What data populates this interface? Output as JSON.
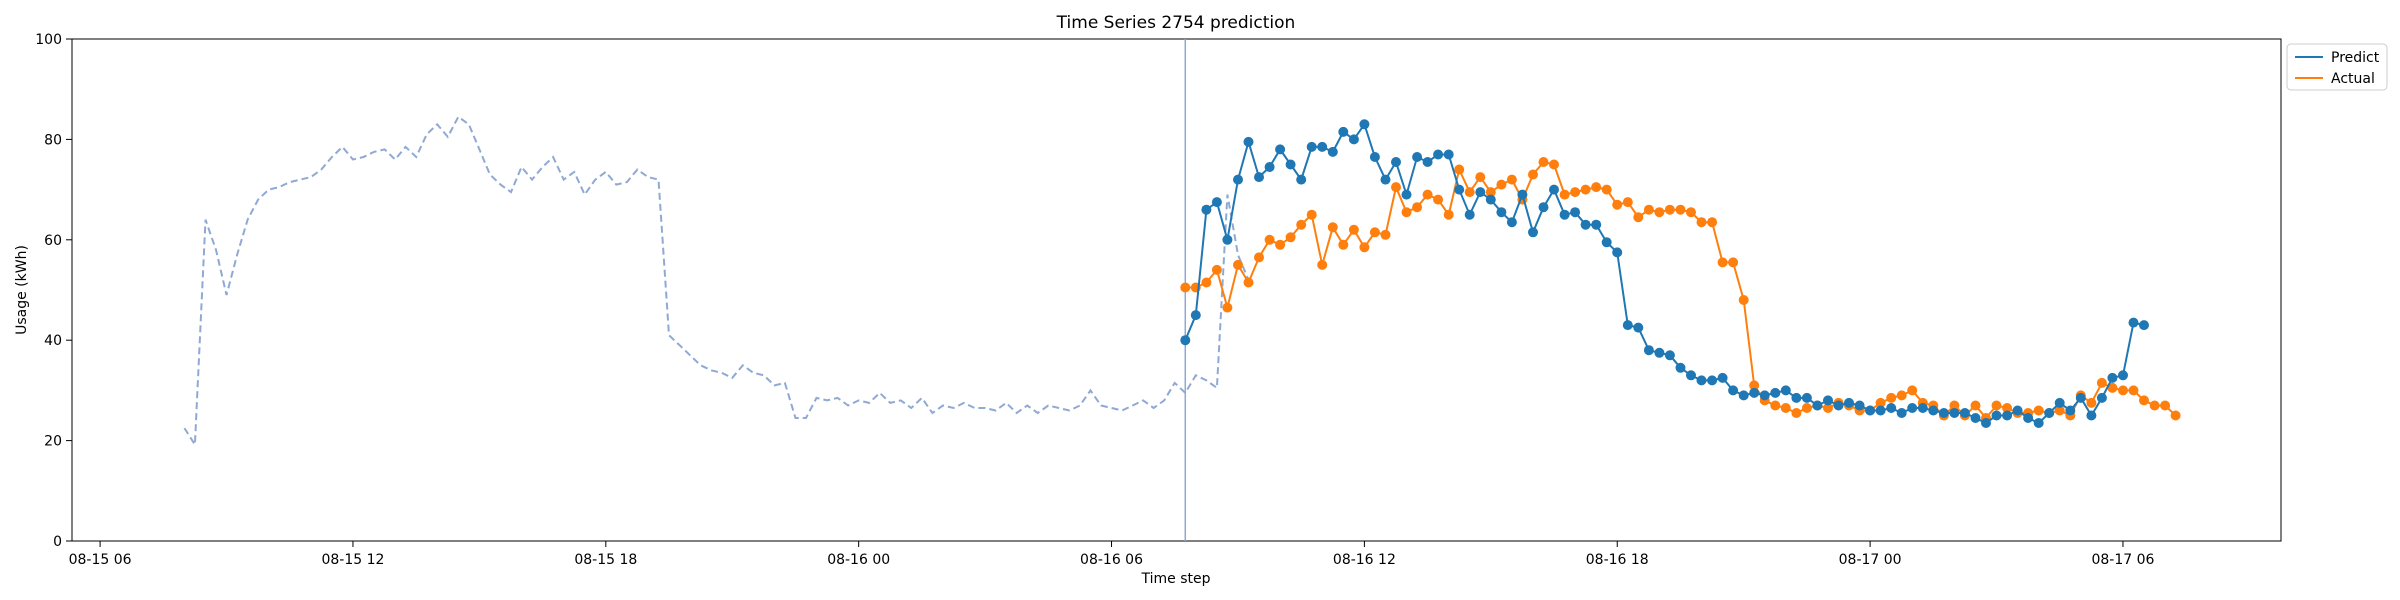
{
  "chart_data": {
    "type": "line",
    "title": "Time Series 2754 prediction",
    "xlabel": "Time step",
    "ylabel": "Usage (kWh)",
    "ylim": [
      0,
      100
    ],
    "xlim": [
      "2024-08-15T05:20",
      "2024-08-17T09:45"
    ],
    "x_ticks": [
      {
        "t": "2024-08-15T06:00",
        "label": "08-15 06"
      },
      {
        "t": "2024-08-15T12:00",
        "label": "08-15 12"
      },
      {
        "t": "2024-08-15T18:00",
        "label": "08-15 18"
      },
      {
        "t": "2024-08-16T00:00",
        "label": "08-16 00"
      },
      {
        "t": "2024-08-16T06:00",
        "label": "08-16 06"
      },
      {
        "t": "2024-08-16T12:00",
        "label": "08-16 12"
      },
      {
        "t": "2024-08-16T18:00",
        "label": "08-16 18"
      },
      {
        "t": "2024-08-17T00:00",
        "label": "08-17 00"
      },
      {
        "t": "2024-08-17T06:00",
        "label": "08-17 06"
      }
    ],
    "y_ticks": [
      0,
      20,
      40,
      60,
      80,
      100
    ],
    "grid": false,
    "legend_position": "upper-right-outside",
    "vline_x": "2024-08-16T07:45",
    "colors": {
      "history": "#8fa9d4",
      "predict": "#1f77b4",
      "actual": "#ff7f0e",
      "vline": "#8fa9d4"
    },
    "history": {
      "start": "2024-08-15T08:00",
      "step_minutes": 15,
      "values": [
        22.5,
        19.2,
        64.0,
        58.0,
        49.0,
        57.0,
        64.0,
        68.0,
        70.0,
        70.5,
        71.5,
        72.0,
        72.5,
        74.0,
        76.5,
        78.5,
        76.0,
        76.5,
        77.5,
        78.0,
        76.0,
        78.5,
        76.5,
        81.0,
        83.0,
        80.5,
        84.5,
        83.0,
        78.0,
        73.0,
        71.0,
        69.5,
        74.5,
        72.0,
        74.5,
        76.5,
        72.0,
        73.5,
        69.0,
        72.0,
        73.5,
        71.0,
        71.5,
        74.0,
        72.5,
        72.0,
        41.0,
        39.0,
        37.0,
        35.0,
        34.0,
        33.5,
        32.5,
        35.0,
        33.5,
        33.0,
        31.0,
        31.5,
        24.5,
        24.5,
        28.5,
        28.0,
        28.5,
        27.0,
        28.0,
        27.5,
        29.5,
        27.5,
        28.0,
        26.5,
        28.5,
        25.5,
        27.0,
        26.5,
        27.5,
        26.5,
        26.5,
        26.0,
        27.5,
        25.5,
        27.0,
        25.5,
        27.0,
        26.5,
        26.0,
        27.0,
        30.0,
        27.0,
        26.5,
        26.0,
        27.0,
        28.0,
        26.5,
        28.0,
        31.5,
        29.5,
        33.0,
        32.0,
        30.5,
        69.0,
        57.0,
        52.0
      ]
    },
    "series": [
      {
        "name": "Predict",
        "start": "2024-08-16T07:45",
        "step_minutes": 15,
        "values": [
          40.0,
          45.0,
          66.0,
          67.5,
          60.0,
          72.0,
          79.5,
          72.5,
          74.5,
          78.0,
          75.0,
          72.0,
          78.5,
          78.5,
          77.5,
          81.5,
          80.0,
          83.0,
          76.5,
          72.0,
          75.5,
          69.0,
          76.5,
          75.5,
          77.0,
          77.0,
          70.0,
          65.0,
          69.5,
          68.0,
          65.5,
          63.5,
          69.0,
          61.5,
          66.5,
          70.0,
          65.0,
          65.5,
          63.0,
          63.0,
          59.5,
          57.5,
          43.0,
          42.5,
          38.0,
          37.5,
          37.0,
          34.5,
          33.0,
          32.0,
          32.0,
          32.5,
          30.0,
          29.0,
          29.5,
          29.0,
          29.5,
          30.0,
          28.5,
          28.5,
          27.0,
          28.0,
          27.0,
          27.5,
          27.0,
          26.0,
          26.0,
          26.5,
          25.5,
          26.5,
          26.5,
          26.0,
          25.5,
          25.5,
          25.5,
          24.5,
          23.5,
          25.0,
          25.0,
          26.0,
          24.5,
          23.5,
          25.5,
          27.5,
          26.0,
          28.5,
          25.0,
          28.5,
          32.5,
          33.0,
          43.5,
          43.0
        ]
      },
      {
        "name": "Actual",
        "start": "2024-08-16T07:45",
        "step_minutes": 15,
        "values": [
          50.5,
          50.5,
          51.5,
          54.0,
          46.5,
          55.0,
          51.5,
          56.5,
          60.0,
          59.0,
          60.5,
          63.0,
          65.0,
          55.0,
          62.5,
          59.0,
          62.0,
          58.5,
          61.5,
          61.0,
          70.5,
          65.5,
          66.5,
          69.0,
          68.0,
          65.0,
          74.0,
          69.5,
          72.5,
          69.5,
          71.0,
          72.0,
          68.0,
          73.0,
          75.5,
          75.0,
          69.0,
          69.5,
          70.0,
          70.5,
          70.0,
          67.0,
          67.5,
          64.5,
          66.0,
          65.5,
          66.0,
          66.0,
          65.5,
          63.5,
          63.5,
          55.5,
          55.5,
          48.0,
          31.0,
          28.0,
          27.0,
          26.5,
          25.5,
          26.5,
          27.0,
          26.5,
          27.5,
          27.0,
          26.0,
          26.0,
          27.5,
          28.5,
          29.0,
          30.0,
          27.5,
          27.0,
          25.0,
          27.0,
          25.0,
          27.0,
          24.5,
          27.0,
          26.5,
          25.5,
          25.5,
          26.0,
          25.5,
          26.0,
          25.0,
          29.0,
          27.5,
          31.5,
          30.5,
          30.0,
          30.0,
          28.0,
          27.0,
          27.0,
          25.0
        ]
      }
    ]
  }
}
